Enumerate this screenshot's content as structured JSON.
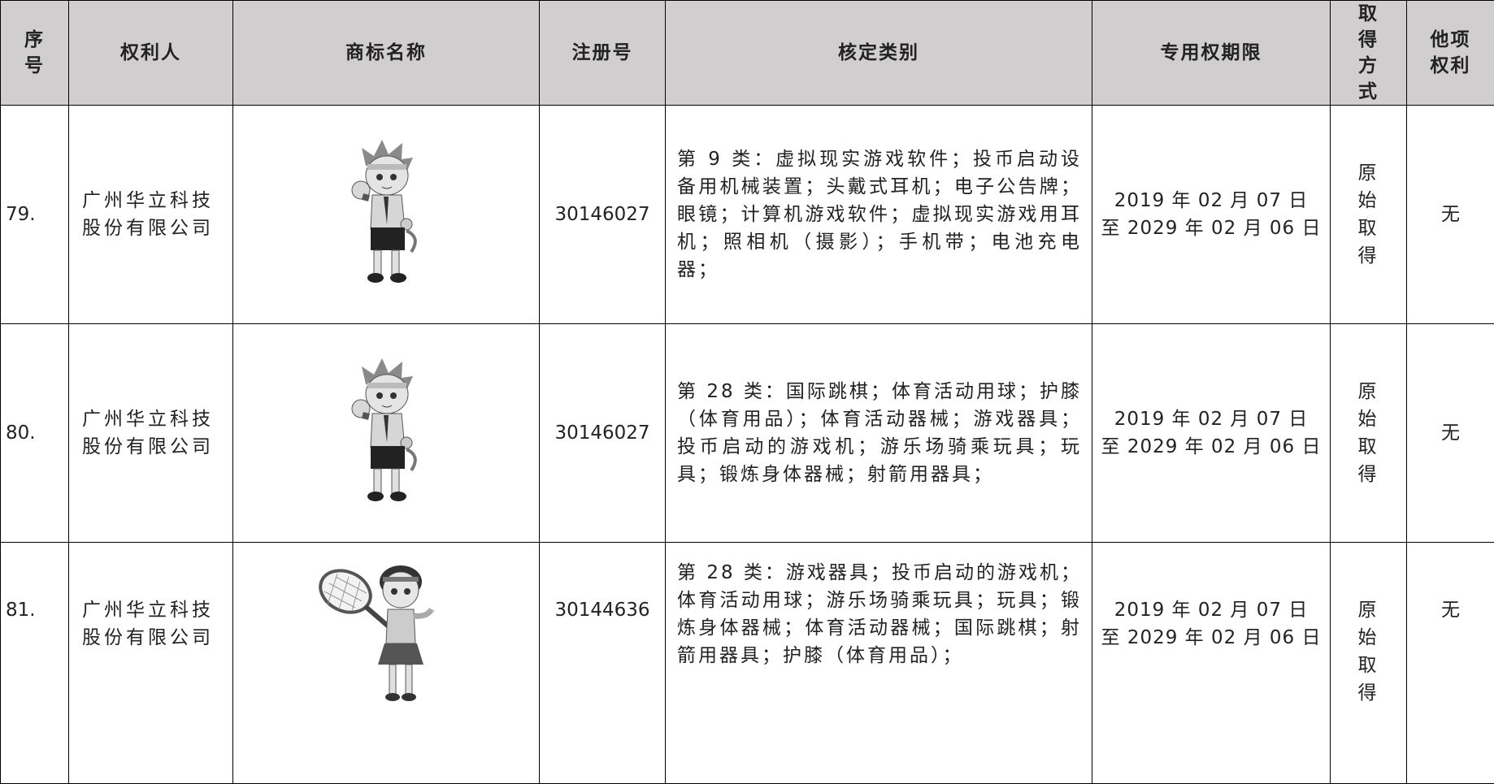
{
  "table": {
    "headers": [
      "序号",
      "权利人",
      "商标名称",
      "注册号",
      "核定类别",
      "专用权期限",
      "取得方式",
      "他项权利"
    ],
    "rows": [
      {
        "no": "79.",
        "owner": "广州华立科技股份有限公司",
        "reg": "30146027",
        "classes": "第 9 类：虚拟现实游戏软件；投币启动设备用机械装置；头戴式耳机；电子公告牌；眼镜；计算机游戏软件；虚拟现实游戏用耳机；照相机（摄影）；手机带；电池充电器；",
        "period": [
          "2019 年 02 月 07 日",
          "至 2029 年 02 月 06 日"
        ],
        "method": "原始取得",
        "rights": "无"
      },
      {
        "no": "80.",
        "owner": "广州华立科技股份有限公司",
        "reg": "30146027",
        "classes": "第 28 类：国际跳棋；体育活动用球；护膝（体育用品）；体育活动器械；游戏器具；投币启动的游戏机；游乐场骑乘玩具；玩具；锻炼身体器械；射箭用器具；",
        "period": [
          "2019 年 02 月 07 日",
          "至 2029 年 02 月 06 日"
        ],
        "method": "原始取得",
        "rights": "无"
      },
      {
        "no": "81.",
        "owner": "广州华立科技股份有限公司",
        "reg": "30144636",
        "classes": "第 28 类：游戏器具；投币启动的游戏机；体育活动用球；游乐场骑乘玩具；玩具；锻炼身体器械；体育活动器械；国际跳棋；射箭用器具；护膝（体育用品）；",
        "period": [
          "2019 年 02 月 07 日",
          "至 2029 年 02 月 06 日"
        ],
        "method": "原始取得",
        "rights": "无"
      }
    ]
  }
}
